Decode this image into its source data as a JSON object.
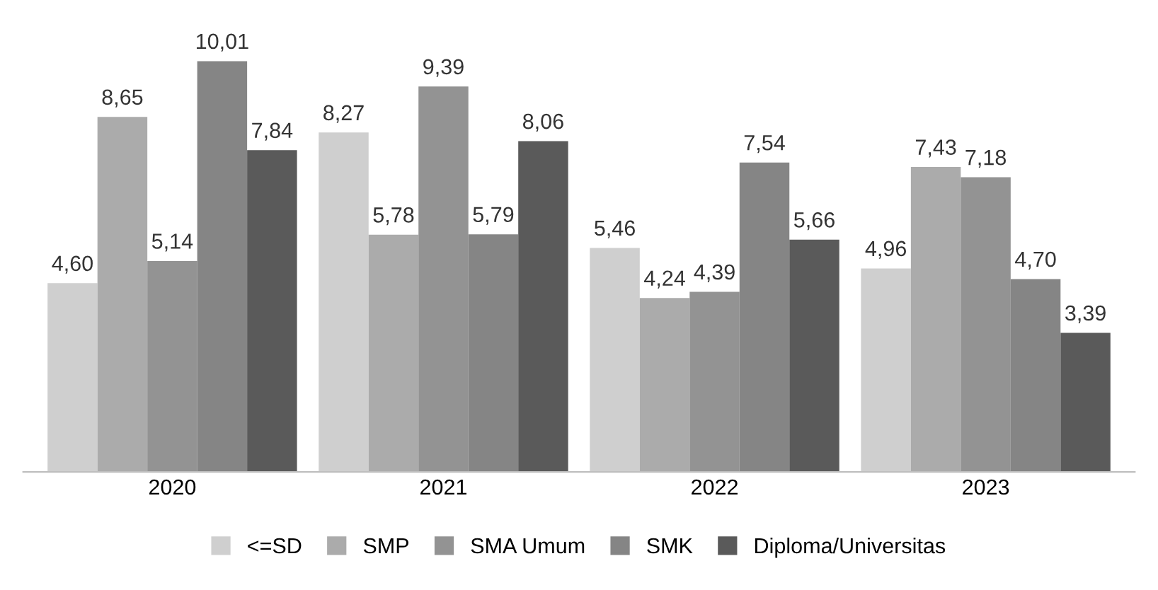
{
  "chart_data": {
    "type": "bar",
    "categories": [
      "2020",
      "2021",
      "2022",
      "2023"
    ],
    "series": [
      {
        "name": "<=SD",
        "color": "#cfcfcf",
        "values": [
          4.6,
          8.27,
          5.46,
          4.96
        ],
        "value_labels": [
          "4,60",
          "8,27",
          "5,46",
          "4,96"
        ]
      },
      {
        "name": "SMP",
        "color": "#ababab",
        "values": [
          8.65,
          5.78,
          4.24,
          7.43
        ],
        "value_labels": [
          "8,65",
          "5,78",
          "4,24",
          "7,43"
        ]
      },
      {
        "name": "SMA Umum",
        "color": "#939393",
        "values": [
          5.14,
          9.39,
          4.39,
          7.18
        ],
        "value_labels": [
          "5,14",
          "9,39",
          "4,39",
          "7,18"
        ]
      },
      {
        "name": "SMK",
        "color": "#858585",
        "values": [
          10.01,
          5.79,
          7.54,
          4.7
        ],
        "value_labels": [
          "10,01",
          "5,79",
          "7,54",
          "4,70"
        ]
      },
      {
        "name": "Diploma/Universitas",
        "color": "#5a5a5a",
        "values": [
          7.84,
          8.06,
          5.66,
          3.39
        ],
        "value_labels": [
          "7,84",
          "8,06",
          "5,66",
          "3,39"
        ]
      }
    ],
    "grid": false,
    "legend": "bottom",
    "tick_labels": "x"
  }
}
